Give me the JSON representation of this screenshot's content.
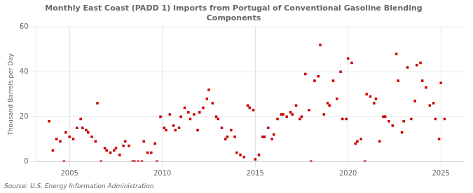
{
  "chart_data": {
    "type": "scatter",
    "title": "Monthly East Coast (PADD 1) Imports from Portugal of Conventional Gasoline Blending\nComponents",
    "ylabel": "Thousand Barrels per Day",
    "annotation": "Source: U.S. Energy Information Administration",
    "color": "#cc0000",
    "marker": "square",
    "grid": true,
    "xlim": [
      2003.2,
      2026.2
    ],
    "ylim": [
      0,
      60
    ],
    "yticks": [
      0,
      20,
      40,
      60
    ],
    "xticks": [
      2005,
      2010,
      2015,
      2020,
      2025
    ],
    "x": [
      2003.9,
      2004.1,
      2004.3,
      2004.5,
      2004.7,
      2004.8,
      2005.0,
      2005.2,
      2005.4,
      2005.6,
      2005.7,
      2005.9,
      2006.0,
      2006.2,
      2006.4,
      2006.5,
      2006.7,
      2006.9,
      2007.0,
      2007.2,
      2007.4,
      2007.5,
      2007.7,
      2007.9,
      2008.0,
      2008.2,
      2008.4,
      2008.5,
      2008.7,
      2008.9,
      2009.0,
      2009.2,
      2009.4,
      2009.6,
      2009.7,
      2009.9,
      2010.1,
      2010.2,
      2010.4,
      2010.6,
      2010.7,
      2010.9,
      2011.0,
      2011.2,
      2011.4,
      2011.5,
      2011.7,
      2011.9,
      2012.0,
      2012.2,
      2012.4,
      2012.5,
      2012.7,
      2012.9,
      2013.0,
      2013.2,
      2013.4,
      2013.5,
      2013.7,
      2013.9,
      2014.0,
      2014.2,
      2014.4,
      2014.6,
      2014.7,
      2014.9,
      2015.0,
      2015.2,
      2015.4,
      2015.5,
      2015.7,
      2015.9,
      2016.0,
      2016.2,
      2016.4,
      2016.5,
      2016.7,
      2016.9,
      2017.0,
      2017.2,
      2017.4,
      2017.5,
      2017.7,
      2017.9,
      2018.0,
      2018.2,
      2018.4,
      2018.5,
      2018.7,
      2018.9,
      2019.0,
      2019.2,
      2019.4,
      2019.6,
      2019.7,
      2019.9,
      2020.0,
      2020.2,
      2020.4,
      2020.5,
      2020.7,
      2020.9,
      2021.0,
      2021.2,
      2021.4,
      2021.5,
      2021.7,
      2021.9,
      2022.0,
      2022.2,
      2022.4,
      2022.6,
      2022.7,
      2022.9,
      2023.0,
      2023.2,
      2023.4,
      2023.6,
      2023.7,
      2023.9,
      2024.0,
      2024.2,
      2024.4,
      2024.6,
      2024.7,
      2024.9,
      2025.0,
      2025.2
    ],
    "values": [
      18,
      5,
      10,
      9,
      0,
      13,
      11,
      10,
      15,
      19,
      15,
      14,
      13,
      11,
      9,
      26,
      0,
      6,
      5,
      4,
      5,
      6,
      3,
      7,
      9,
      7,
      0,
      0,
      0,
      0,
      9,
      4,
      4,
      8,
      0,
      20,
      15,
      14,
      21,
      16,
      14,
      15,
      20,
      24,
      22,
      19,
      21,
      14,
      22,
      24,
      28,
      32,
      26,
      20,
      19,
      15,
      10,
      11,
      14,
      11,
      4,
      3,
      2,
      25,
      24,
      23,
      1,
      3,
      11,
      11,
      15,
      10,
      12,
      19,
      21,
      21,
      20,
      22,
      21,
      25,
      19,
      20,
      39,
      23,
      0,
      36,
      38,
      52,
      21,
      26,
      25,
      36,
      28,
      40,
      19,
      19,
      46,
      44,
      8,
      9,
      10,
      0,
      30,
      29,
      26,
      28,
      9,
      20,
      20,
      18,
      16,
      48,
      36,
      13,
      18,
      42,
      19,
      27,
      43,
      44,
      36,
      33,
      25,
      26,
      19,
      10,
      35,
      19
    ]
  }
}
